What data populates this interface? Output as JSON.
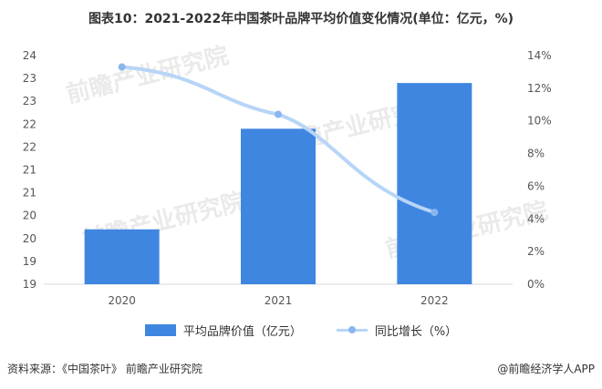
{
  "title": "图表10：2021-2022年中国茶叶品牌平均价值变化情况(单位：亿元，%)",
  "colors": {
    "bar": "#3f86e0",
    "line": "#b7d5f7",
    "point": "#8ab6ee",
    "axis": "#d9d9d9"
  },
  "chart_data": {
    "type": "bar",
    "categories": [
      "2020",
      "2021",
      "2022"
    ],
    "series": [
      {
        "name": "平均品牌价值（亿元）",
        "type": "bar",
        "axis": "left",
        "values": [
          20.2,
          22.4,
          23.4
        ]
      },
      {
        "name": "同比增长（%）",
        "type": "line",
        "axis": "right",
        "values": [
          13.3,
          10.4,
          4.4
        ]
      }
    ],
    "left_axis": {
      "ylim": [
        19,
        24
      ],
      "ticks": [
        "24",
        "23",
        "23",
        "22",
        "22",
        "21",
        "21",
        "20",
        "20",
        "19",
        "19"
      ]
    },
    "right_axis": {
      "ylim": [
        0,
        14
      ],
      "ticks": [
        "14%",
        "12%",
        "10%",
        "8%",
        "6%",
        "4%",
        "2%",
        "0%"
      ]
    },
    "legend_position": "bottom"
  },
  "legend": {
    "bar_label": "平均品牌价值（亿元）",
    "line_label": "同比增长（%）"
  },
  "footer": {
    "source": "资料来源：《中国茶叶》 前瞻产业研究院",
    "brand": "@前瞻经济学人APP"
  },
  "watermark": "前瞻产业研究院"
}
